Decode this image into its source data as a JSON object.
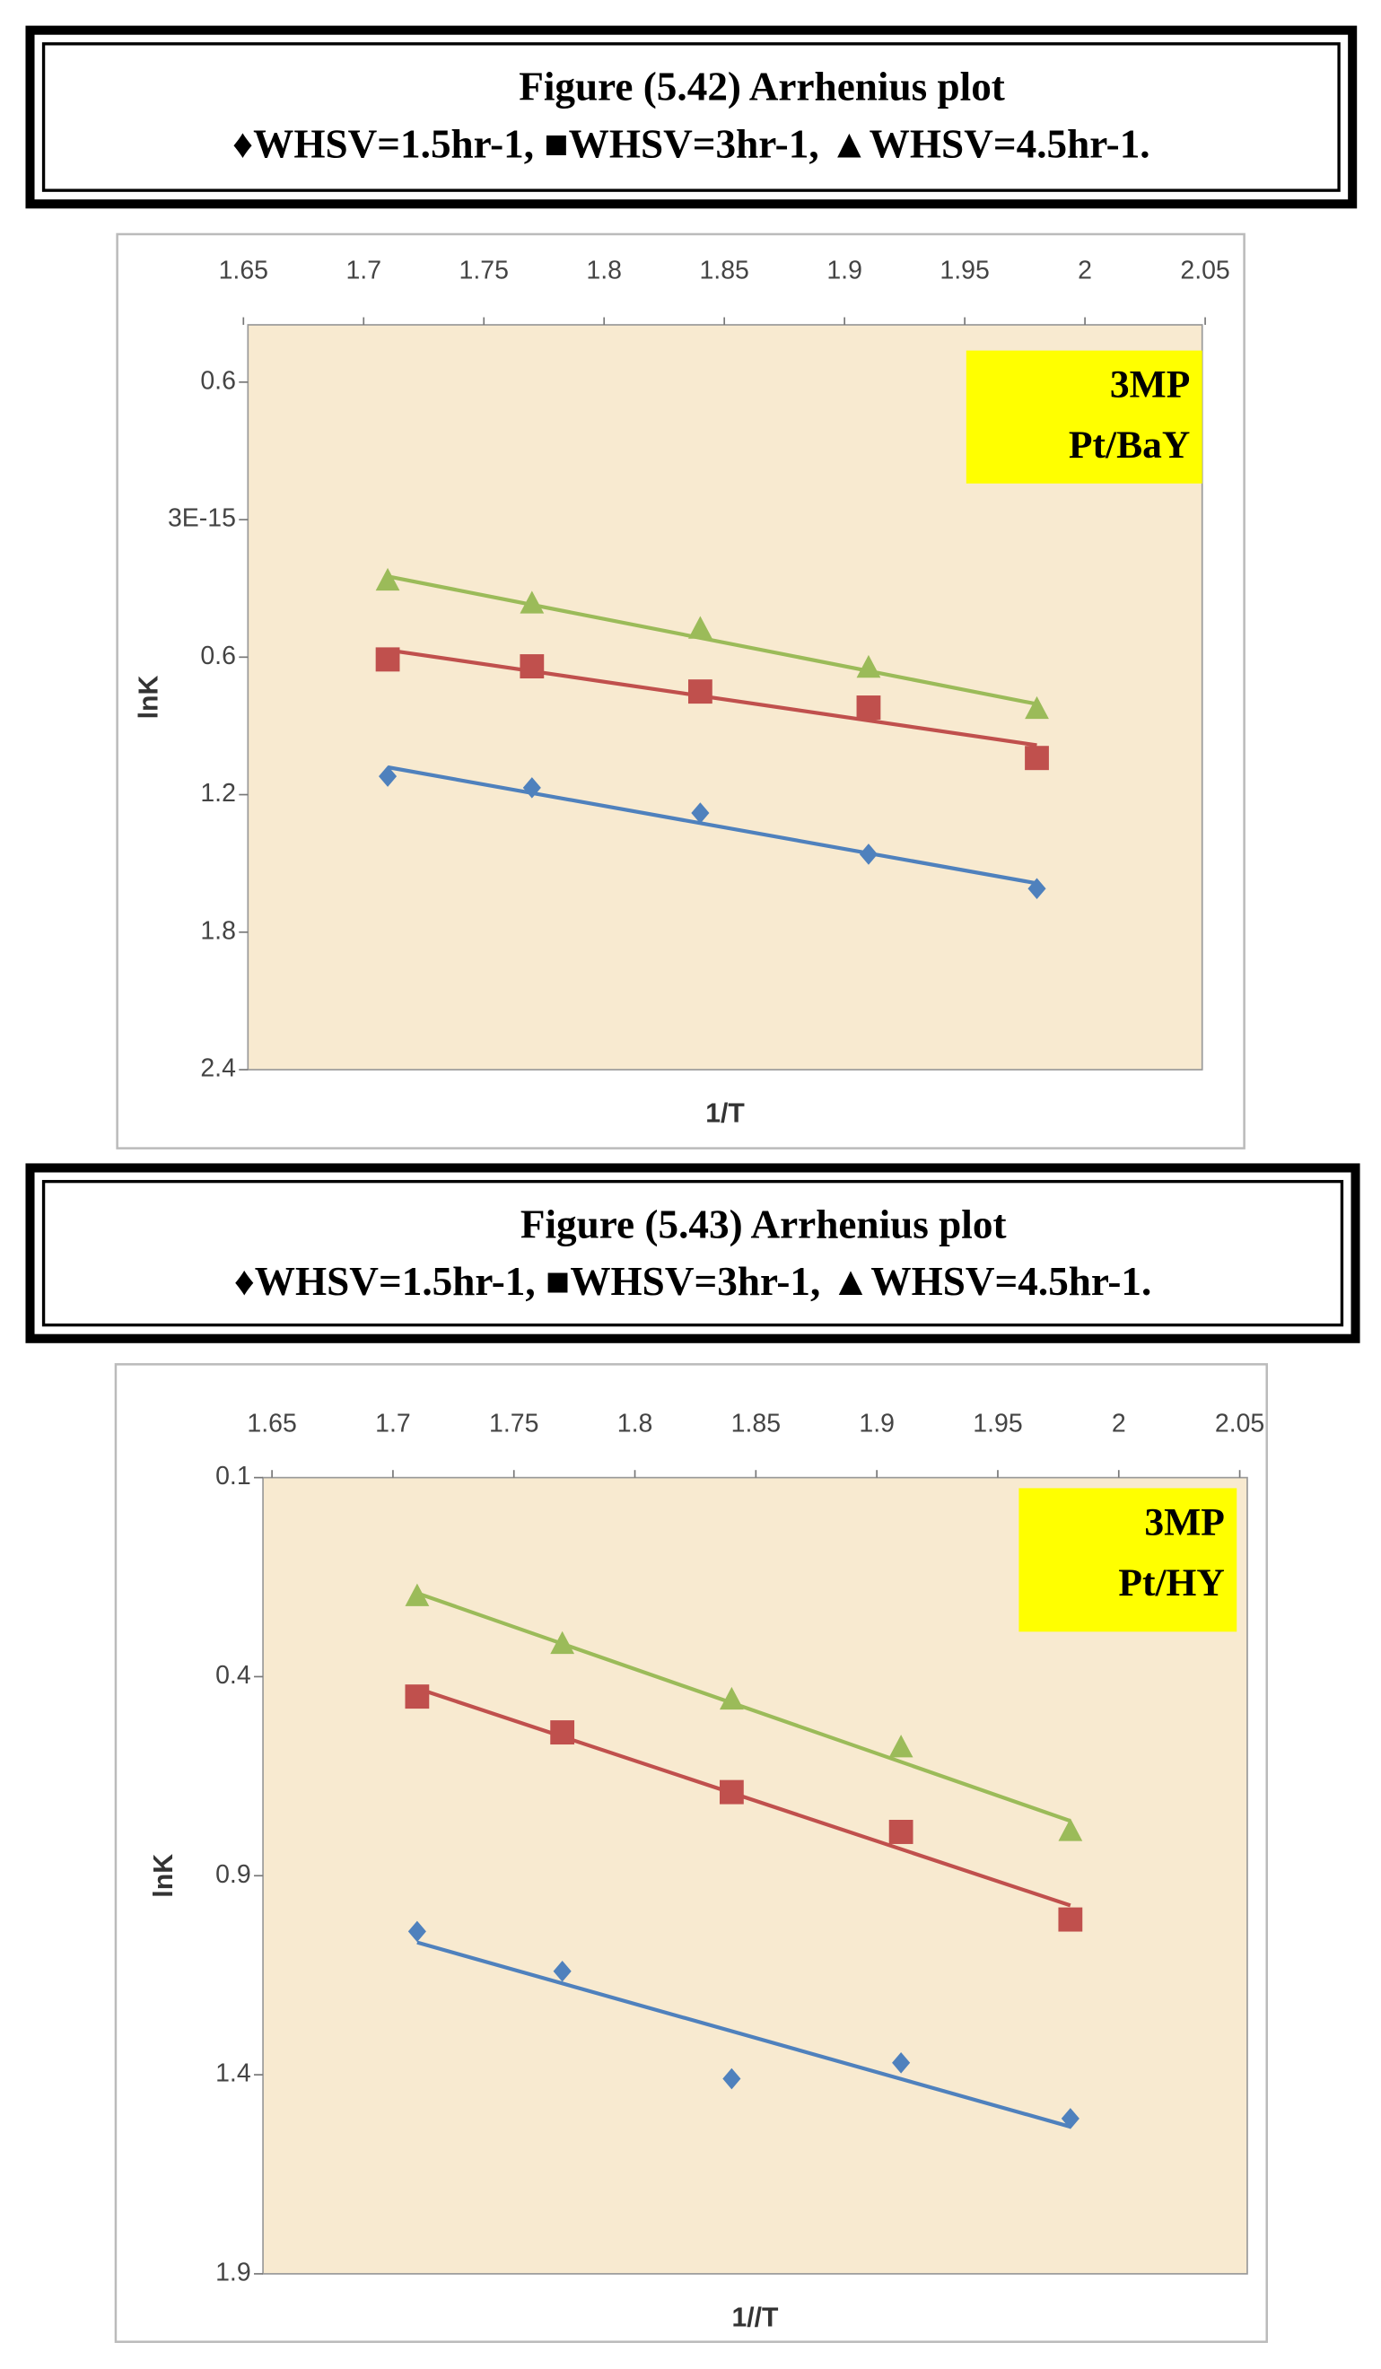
{
  "chart_data": [
    {
      "type": "scatter",
      "title": "Figure (5.42) Arrhenius plot",
      "subtitle": "♦WHSV=1.5hr-1, ■WHSV=3hr-1, ▲WHSV=4.5hr-1.",
      "xlabel": "1/T",
      "ylabel": "lnK",
      "annotation": [
        "3MP",
        "Pt/BaY"
      ],
      "xlim": [
        1.65,
        2.05
      ],
      "xticks": [
        1.65,
        1.7,
        1.75,
        1.8,
        1.85,
        1.9,
        1.95,
        2,
        2.05
      ],
      "ylim": [
        2.4,
        -0.85
      ],
      "yticks": [
        {
          "value": -0.6,
          "label": "0.6"
        },
        {
          "value": 3e-15,
          "label": "3E-15"
        },
        0.6,
        1.2,
        1.8,
        2.4
      ],
      "trendline": true,
      "series": [
        {
          "marker": "diamond",
          "color": "#4f81bd",
          "x": [
            1.71,
            1.77,
            1.84,
            1.91,
            1.98
          ],
          "values": [
            1.12,
            1.17,
            1.28,
            1.46,
            1.61
          ]
        },
        {
          "marker": "square",
          "color": "#c0504d",
          "x": [
            1.71,
            1.77,
            1.84,
            1.91,
            1.98
          ],
          "values": [
            0.61,
            0.64,
            0.75,
            0.82,
            1.04
          ]
        },
        {
          "marker": "triangle",
          "color": "#9bbb59",
          "x": [
            1.71,
            1.77,
            1.84,
            1.91,
            1.98
          ],
          "values": [
            0.27,
            0.37,
            0.48,
            0.65,
            0.83
          ]
        }
      ]
    },
    {
      "type": "scatter",
      "title": "Figure (5.43) Arrhenius plot",
      "subtitle": "♦WHSV=1.5hr-1, ■WHSV=3hr-1, ▲WHSV=4.5hr-1.",
      "xlabel": "1//T",
      "ylabel": "lnK",
      "annotation": [
        "3MP",
        "Pt/HY"
      ],
      "xlim": [
        1.65,
        2.05
      ],
      "xticks": [
        1.65,
        1.7,
        1.75,
        1.8,
        1.85,
        1.9,
        1.95,
        2,
        2.05
      ],
      "ylim": [
        1.9,
        -0.1
      ],
      "yticks": [
        {
          "value": -0.1,
          "label": "0.1"
        },
        0.4,
        0.9,
        1.4,
        1.9
      ],
      "trendline": true,
      "series": [
        {
          "marker": "diamond",
          "color": "#4f81bd",
          "x": [
            1.71,
            1.77,
            1.84,
            1.91,
            1.98
          ],
          "values": [
            1.04,
            1.14,
            1.41,
            1.37,
            1.51
          ]
        },
        {
          "marker": "square",
          "color": "#c0504d",
          "x": [
            1.71,
            1.77,
            1.84,
            1.91,
            1.98
          ],
          "values": [
            0.45,
            0.54,
            0.69,
            0.79,
            1.01
          ]
        },
        {
          "marker": "triangle",
          "color": "#9bbb59",
          "x": [
            1.71,
            1.77,
            1.84,
            1.91,
            1.98
          ],
          "values": [
            0.2,
            0.32,
            0.46,
            0.58,
            0.79
          ]
        }
      ]
    }
  ]
}
